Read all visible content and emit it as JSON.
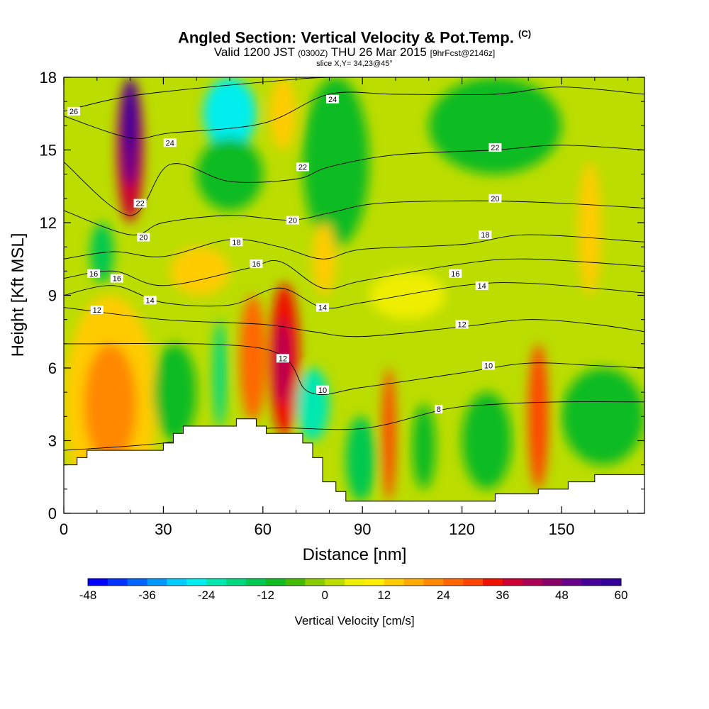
{
  "header": {
    "title": "Angled Section: Vertical Velocity & Pot.Temp.",
    "title_unit": "(C)",
    "subtitle_a": "Valid 1200 JST",
    "subtitle_zulu": "(0300Z)",
    "subtitle_b": "THU 26 Mar 2015",
    "subtitle_fcst": "[9hrFcst@2146z]",
    "slice": "slice X,Y= 34,23@45°"
  },
  "chart_data": {
    "type": "heatmap",
    "title": "Angled Section: Vertical Velocity & Pot.Temp.",
    "xlabel": "Distance [nm]",
    "ylabel": "Height [Kft MSL]",
    "xlim": [
      0,
      175
    ],
    "ylim": [
      0,
      18
    ],
    "xticks": [
      0,
      30,
      60,
      90,
      120,
      150
    ],
    "yticks": [
      0,
      3,
      6,
      9,
      12,
      15,
      18
    ],
    "colorbar": {
      "label": "Vertical Velocity [cm/s]",
      "min": -48,
      "max": 60,
      "step": 4,
      "tick_labels": [
        -48,
        -36,
        -24,
        -12,
        0,
        12,
        24,
        36,
        48,
        60
      ]
    },
    "colors": [
      "#0000ff",
      "#0033ff",
      "#0066ff",
      "#0099ff",
      "#00ccff",
      "#00eeee",
      "#00e8b0",
      "#00d880",
      "#00c850",
      "#11bb22",
      "#44bb00",
      "#88cc00",
      "#bbdd00",
      "#eeee00",
      "#ffee00",
      "#ffcc00",
      "#ffaa00",
      "#ff8800",
      "#ff6600",
      "#ff4400",
      "#ee1100",
      "#cc0033",
      "#aa0055",
      "#880066",
      "#660088",
      "#440099",
      "#330099"
    ],
    "background_w": 2,
    "w_cells": [
      {
        "x": 0,
        "x2": 28,
        "y": 0,
        "y2": 9,
        "w": 14
      },
      {
        "x": 6,
        "x2": 22,
        "y": 2,
        "y2": 7,
        "w": 22
      },
      {
        "x": 16,
        "x2": 24,
        "y": 12,
        "y2": 18,
        "w": 36
      },
      {
        "x": 17,
        "x2": 23,
        "y": 13.5,
        "y2": 18,
        "w": 48
      },
      {
        "x": 18,
        "x2": 22,
        "y": 15,
        "y2": 18,
        "w": 58
      },
      {
        "x": 8,
        "x2": 15,
        "y": 9.5,
        "y2": 12,
        "w": -14
      },
      {
        "x": 42,
        "x2": 58,
        "y": 15,
        "y2": 18,
        "w": -26
      },
      {
        "x": 40,
        "x2": 60,
        "y": 12.5,
        "y2": 15.5,
        "w": -12
      },
      {
        "x": 62,
        "x2": 70,
        "y": 15,
        "y2": 18,
        "w": 14
      },
      {
        "x": 32,
        "x2": 50,
        "y": 9,
        "y2": 11,
        "w": 12
      },
      {
        "x": 27,
        "x2": 40,
        "y": 3,
        "y2": 7,
        "w": -12
      },
      {
        "x": 45,
        "x2": 49,
        "y": 3.5,
        "y2": 8,
        "w": -18
      },
      {
        "x": 53,
        "x2": 61,
        "y": 3.8,
        "y2": 9,
        "w": 26
      },
      {
        "x": 62,
        "x2": 71,
        "y": 3.2,
        "y2": 9.5,
        "w": 32
      },
      {
        "x": 64,
        "x2": 68,
        "y": 4.5,
        "y2": 8,
        "w": 42
      },
      {
        "x": 70,
        "x2": 80,
        "y": 3,
        "y2": 6,
        "w": -22
      },
      {
        "x": 72,
        "x2": 92,
        "y": 11,
        "y2": 18,
        "w": -12
      },
      {
        "x": 75,
        "x2": 82,
        "y": 9,
        "y2": 12,
        "w": 12
      },
      {
        "x": 92,
        "x2": 115,
        "y": 8,
        "y2": 10,
        "w": 6
      },
      {
        "x": 96,
        "x2": 100,
        "y": 0.5,
        "y2": 6,
        "w": 30
      },
      {
        "x": 85,
        "x2": 94,
        "y": 0.5,
        "y2": 4,
        "w": -14
      },
      {
        "x": 105,
        "x2": 112,
        "y": 1,
        "y2": 4.5,
        "w": -10
      },
      {
        "x": 120,
        "x2": 135,
        "y": 1,
        "y2": 5,
        "w": -12
      },
      {
        "x": 140,
        "x2": 146,
        "y": 1,
        "y2": 7,
        "w": 30
      },
      {
        "x": 155,
        "x2": 162,
        "y": 9,
        "y2": 14.5,
        "w": 12
      },
      {
        "x": 150,
        "x2": 175,
        "y": 2,
        "y2": 6,
        "w": -10
      },
      {
        "x": 110,
        "x2": 150,
        "y": 14,
        "y2": 18,
        "w": -10
      }
    ],
    "terrain": [
      [
        0,
        2.0
      ],
      [
        4,
        2.0
      ],
      [
        4,
        2.3
      ],
      [
        7,
        2.3
      ],
      [
        7,
        2.6
      ],
      [
        30,
        2.6
      ],
      [
        30,
        2.9
      ],
      [
        33,
        2.9
      ],
      [
        33,
        3.3
      ],
      [
        36,
        3.3
      ],
      [
        36,
        3.6
      ],
      [
        52,
        3.6
      ],
      [
        52,
        3.9
      ],
      [
        58,
        3.9
      ],
      [
        58,
        3.6
      ],
      [
        61,
        3.6
      ],
      [
        61,
        3.3
      ],
      [
        72,
        3.3
      ],
      [
        72,
        2.9
      ],
      [
        75,
        2.9
      ],
      [
        75,
        2.3
      ],
      [
        78,
        2.3
      ],
      [
        78,
        1.3
      ],
      [
        82,
        1.3
      ],
      [
        82,
        0.9
      ],
      [
        85,
        0.9
      ],
      [
        85,
        0.5
      ],
      [
        130,
        0.5
      ],
      [
        130,
        0.8
      ],
      [
        143,
        0.8
      ],
      [
        143,
        1.0
      ],
      [
        152,
        1.0
      ],
      [
        152,
        1.3
      ],
      [
        160,
        1.3
      ],
      [
        160,
        1.6
      ],
      [
        175,
        1.6
      ]
    ],
    "theta_isolines": [
      {
        "label": "8",
        "x": [
          0,
          30,
          60,
          90,
          115,
          130,
          150,
          175
        ],
        "y": [
          2.6,
          2.9,
          3.5,
          3.5,
          4.3,
          4.5,
          4.6,
          4.6
        ]
      },
      {
        "label": "10",
        "x": [
          0,
          60,
          74,
          90,
          120,
          140,
          160,
          175
        ],
        "y": [
          7.0,
          6.8,
          5.0,
          5.2,
          5.8,
          6.2,
          6.1,
          6.0
        ]
      },
      {
        "label": "12",
        "x": [
          0,
          30,
          60,
          75,
          90,
          120,
          140,
          160,
          175
        ],
        "y": [
          8.5,
          8.0,
          7.8,
          7.5,
          7.3,
          7.7,
          8.0,
          7.8,
          7.5
        ]
      },
      {
        "label": "14",
        "x": [
          0,
          15,
          30,
          50,
          65,
          78,
          90,
          120,
          140,
          175
        ],
        "y": [
          9.0,
          9.4,
          8.7,
          8.6,
          9.3,
          8.5,
          8.7,
          9.4,
          9.5,
          9.1
        ]
      },
      {
        "label": "16",
        "x": [
          0,
          15,
          30,
          55,
          65,
          78,
          90,
          120,
          140,
          175
        ],
        "y": [
          9.7,
          10.0,
          9.4,
          10.1,
          10.4,
          9.3,
          9.6,
          10.3,
          10.5,
          10.2
        ]
      },
      {
        "label": "18",
        "x": [
          0,
          15,
          30,
          50,
          65,
          78,
          90,
          120,
          140,
          175
        ],
        "y": [
          10.5,
          10.8,
          10.6,
          11.3,
          11.0,
          10.5,
          10.9,
          11.1,
          11.5,
          11.2
        ]
      },
      {
        "label": "20",
        "x": [
          0,
          20,
          30,
          50,
          68,
          80,
          95,
          125,
          150,
          175
        ],
        "y": [
          12.5,
          11.5,
          12.0,
          12.3,
          12.1,
          12.4,
          12.8,
          12.9,
          12.8,
          12.6
        ]
      },
      {
        "label": "22",
        "x": [
          0,
          20,
          32,
          50,
          70,
          80,
          100,
          130,
          150,
          175
        ],
        "y": [
          14.5,
          12.3,
          14.4,
          13.7,
          13.8,
          14.3,
          14.8,
          15.0,
          15.2,
          15.0
        ]
      },
      {
        "label": "24",
        "x": [
          0,
          20,
          32,
          60,
          80,
          100,
          130,
          150,
          175
        ],
        "y": [
          16.4,
          15.5,
          15.7,
          16.1,
          17.3,
          17.3,
          17.3,
          17.6,
          17.3
        ]
      },
      {
        "label": "26",
        "x": [
          0,
          15,
          30,
          60,
          80,
          110,
          150,
          175
        ],
        "y": [
          16.6,
          17.1,
          17.4,
          17.8,
          18.0,
          18.0,
          18.0,
          18.0
        ]
      }
    ],
    "isoline_labels": [
      {
        "text": "26",
        "x": 3,
        "y": 16.6
      },
      {
        "text": "24",
        "x": 32,
        "y": 15.3
      },
      {
        "text": "24",
        "x": 81,
        "y": 17.1
      },
      {
        "text": "22",
        "x": 23,
        "y": 12.8
      },
      {
        "text": "22",
        "x": 72,
        "y": 14.3
      },
      {
        "text": "22",
        "x": 130,
        "y": 15.1
      },
      {
        "text": "20",
        "x": 24,
        "y": 11.4
      },
      {
        "text": "20",
        "x": 69,
        "y": 12.1
      },
      {
        "text": "20",
        "x": 130,
        "y": 13.0
      },
      {
        "text": "18",
        "x": 52,
        "y": 11.2
      },
      {
        "text": "18",
        "x": 127,
        "y": 11.5
      },
      {
        "text": "16",
        "x": 9,
        "y": 9.9
      },
      {
        "text": "16",
        "x": 16,
        "y": 9.7
      },
      {
        "text": "16",
        "x": 58,
        "y": 10.3
      },
      {
        "text": "16",
        "x": 118,
        "y": 9.9
      },
      {
        "text": "14",
        "x": 26,
        "y": 8.8
      },
      {
        "text": "14",
        "x": 78,
        "y": 8.5
      },
      {
        "text": "14",
        "x": 126,
        "y": 9.4
      },
      {
        "text": "12",
        "x": 10,
        "y": 8.4
      },
      {
        "text": "12",
        "x": 120,
        "y": 7.8
      },
      {
        "text": "12",
        "x": 66,
        "y": 6.4
      },
      {
        "text": "10",
        "x": 78,
        "y": 5.1
      },
      {
        "text": "10",
        "x": 128,
        "y": 6.1
      },
      {
        "text": "8",
        "x": 113,
        "y": 4.3
      }
    ]
  }
}
